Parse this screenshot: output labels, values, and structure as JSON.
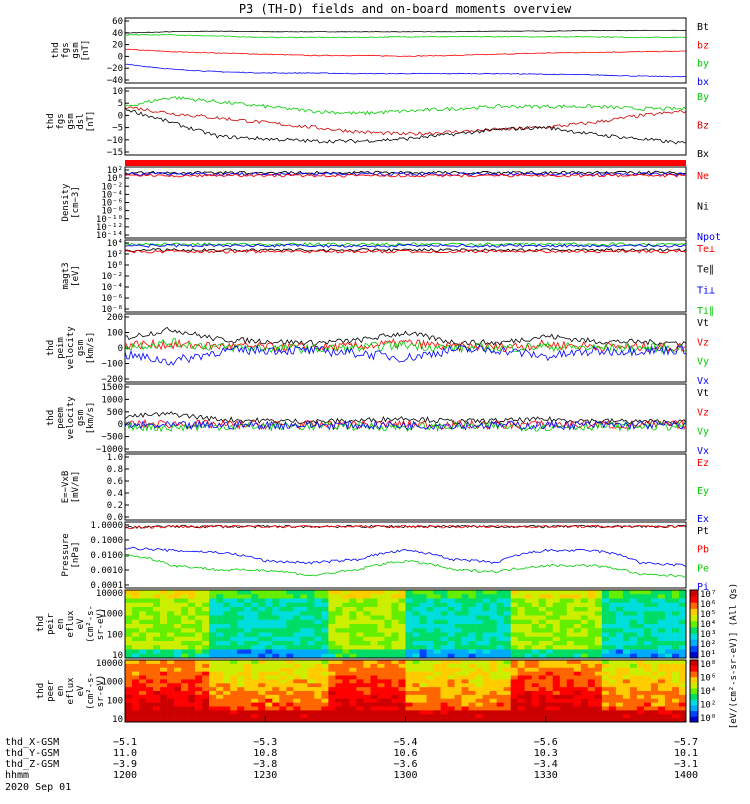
{
  "title": "P3 (TH-D) fields and on-board moments overview",
  "panels": [
    {
      "id": "fgs-gsm",
      "ylabel": [
        "thd",
        "fgs",
        "gsm",
        "[nT]"
      ],
      "yticks": [
        "60",
        "40",
        "20",
        "0",
        "−20",
        "−40"
      ],
      "yrange": [
        -42,
        62
      ],
      "legend": [
        {
          "label": "Bt",
          "color": "#000000"
        },
        {
          "label": "bz",
          "color": "#ff0000"
        },
        {
          "label": "by",
          "color": "#00cc00"
        },
        {
          "label": "bx",
          "color": "#0000ff"
        }
      ]
    },
    {
      "id": "fgs-dsl",
      "ylabel": [
        "thd",
        "fgs",
        "gsm",
        "dsl",
        "[nT]"
      ],
      "yticks": [
        "10",
        "5",
        "0",
        "−5",
        "−10",
        "−15"
      ],
      "yrange": [
        -18,
        11
      ],
      "legend": [
        {
          "label": "By",
          "color": "#00cc00"
        },
        {
          "label": "Bz",
          "color": "#cc0000"
        },
        {
          "label": "Bx",
          "color": "#000000"
        }
      ]
    },
    {
      "id": "density",
      "ylabel": [
        "Density",
        "[cm−3]"
      ],
      "yticks": [
        "10²",
        "10⁰",
        "10⁻²",
        "10⁻⁴",
        "10⁻⁶",
        "10⁻⁸",
        "10⁻¹⁰",
        "10⁻¹²",
        "10⁻¹⁴"
      ],
      "legend": [
        {
          "label": "Ne",
          "color": "#ff0000"
        },
        {
          "label": "Ni",
          "color": "#000000"
        },
        {
          "label": "Npot",
          "color": "#0000ff"
        }
      ]
    },
    {
      "id": "temperature",
      "ylabel": [
        "magt3",
        "[eV]"
      ],
      "yticks": [
        "10⁴",
        "10²",
        "10⁰",
        "10⁻²",
        "10⁻⁴",
        "10⁻⁶",
        "10⁻⁸"
      ],
      "legend": [
        {
          "label": "Te⊥",
          "color": "#ff0000"
        },
        {
          "label": "Te∥",
          "color": "#000000"
        },
        {
          "label": "Ti⊥",
          "color": "#0000ff"
        },
        {
          "label": "Ti∥",
          "color": "#00cc00"
        }
      ]
    },
    {
      "id": "peim-velocity",
      "ylabel": [
        "thd",
        "peim",
        "velocity",
        "gsm",
        "[km/s]"
      ],
      "yticks": [
        "200",
        "100",
        "0",
        "−100",
        "−200"
      ],
      "yrange": [
        -200,
        200
      ],
      "legend": [
        {
          "label": "Vt",
          "color": "#000000"
        },
        {
          "label": "Vz",
          "color": "#ff0000"
        },
        {
          "label": "Vy",
          "color": "#00cc00"
        },
        {
          "label": "Vx",
          "color": "#0000ff"
        }
      ]
    },
    {
      "id": "peem-velocity",
      "ylabel": [
        "thd",
        "peem",
        "velocity",
        "gsm",
        "[km/s]"
      ],
      "yticks": [
        "1500",
        "1000",
        "500",
        "0",
        "−500",
        "−1000"
      ],
      "yrange": [
        -1000,
        1500
      ],
      "legend": [
        {
          "label": "Vt",
          "color": "#000000"
        },
        {
          "label": "Vz",
          "color": "#ff0000"
        },
        {
          "label": "Vy",
          "color": "#00cc00"
        },
        {
          "label": "Vx",
          "color": "#0000ff"
        }
      ]
    },
    {
      "id": "efield",
      "ylabel": [
        "E=−VxB",
        "[mV/m]"
      ],
      "yticks": [
        "1.0",
        "0.8",
        "0.6",
        "0.4",
        "0.2",
        "0.0"
      ],
      "yrange": [
        0,
        1
      ],
      "legend": [
        {
          "label": "Ez",
          "color": "#ff0000"
        },
        {
          "label": "Ey",
          "color": "#00cc00"
        },
        {
          "label": "Ex",
          "color": "#0000ff"
        }
      ]
    },
    {
      "id": "pressure",
      "ylabel": [
        "Pressure",
        "[nPa]"
      ],
      "yticks": [
        "1.0000",
        "0.1000",
        "0.0100",
        "0.0010",
        "0.0001"
      ],
      "legend": [
        {
          "label": "Pt",
          "color": "#000000"
        },
        {
          "label": "Pb",
          "color": "#ff0000"
        },
        {
          "label": "Pe",
          "color": "#00cc00"
        },
        {
          "label": "Pi",
          "color": "#0000ff"
        }
      ]
    },
    {
      "id": "peir-spec",
      "ylabel": [
        "thd",
        "peir",
        "en",
        "eflux",
        "eV",
        "(cm²-s-",
        "sr-eV)"
      ],
      "yticks": [
        "10000",
        "1000",
        "100",
        "10"
      ]
    },
    {
      "id": "peer-spec",
      "ylabel": [
        "thd",
        "peer",
        "en",
        "eflux",
        "eV",
        "(cm²-s-",
        "sr-eV)"
      ],
      "yticks": [
        "10000",
        "1000",
        "100",
        "10"
      ]
    }
  ],
  "colorbar": {
    "label": "[eV/(cm²-s-sr-eV)] (All Qs)",
    "top_ticks": [
      "10⁷",
      "10⁶",
      "10⁵",
      "10⁴",
      "10³",
      "10²",
      "10¹"
    ],
    "bottom_ticks": [
      "10⁸",
      "10⁶",
      "10⁴",
      "10²",
      "10⁰"
    ]
  },
  "xaxis": {
    "rows": [
      {
        "label": "thd_X-GSM",
        "values": [
          "−5.1",
          "−5.3",
          "−5.4",
          "−5.6",
          "−5.7"
        ]
      },
      {
        "label": "thd_Y-GSM",
        "values": [
          "11.0",
          "10.8",
          "10.6",
          "10.3",
          "10.1"
        ]
      },
      {
        "label": "thd_Z-GSM",
        "values": [
          "−3.9",
          "−3.8",
          "−3.6",
          "−3.4",
          "−3.1"
        ]
      },
      {
        "label": "hhmm",
        "values": [
          "1200",
          "1230",
          "1300",
          "1330",
          "1400"
        ]
      }
    ],
    "date": "2020 Sep 01"
  },
  "chart_data": {
    "type": "line",
    "title": "P3 (TH-D) fields and on-board moments overview",
    "x_label": "hhmm",
    "x_range": [
      "1200",
      "1400"
    ],
    "x": [
      1200,
      1210,
      1220,
      1230,
      1240,
      1250,
      1300,
      1310,
      1320,
      1330,
      1340,
      1350,
      1400
    ],
    "panels": [
      {
        "id": "fgs-gsm",
        "series": [
          {
            "name": "Bt",
            "values": [
              38,
              40,
              41,
              40,
              40,
              40,
              40,
              40,
              41,
              41,
              42,
              42,
              42
            ]
          },
          {
            "name": "bz",
            "values": [
              12,
              8,
              6,
              4,
              2,
              2,
              1,
              2,
              4,
              6,
              7,
              8,
              9
            ]
          },
          {
            "name": "by",
            "values": [
              35,
              35,
              33,
              31,
              31,
              31,
              32,
              32,
              32,
              32,
              32,
              31,
              31
            ]
          },
          {
            "name": "bx",
            "values": [
              -12,
              -20,
              -24,
              -26,
              -26,
              -27,
              -27,
              -27,
              -27,
              -28,
              -29,
              -31,
              -32
            ]
          }
        ]
      },
      {
        "id": "fgs-dsl",
        "series": [
          {
            "name": "By",
            "values": [
              3,
              7,
              5,
              3,
              1,
              0,
              1,
              2,
              3,
              3,
              3,
              2,
              2
            ]
          },
          {
            "name": "Bz",
            "values": [
              3,
              0,
              -2,
              -4,
              -6,
              -8,
              -9,
              -8,
              -7,
              -6,
              -4,
              -1,
              1
            ]
          },
          {
            "name": "Bx",
            "values": [
              2,
              -4,
              -10,
              -11,
              -12,
              -12,
              -11,
              -9,
              -7,
              -6,
              -9,
              -11,
              -13
            ]
          }
        ]
      },
      {
        "id": "peim-velocity",
        "series": [
          {
            "name": "Vt",
            "values": [
              60,
              110,
              50,
              40,
              30,
              45,
              90,
              35,
              30,
              70,
              40,
              35,
              30
            ]
          },
          {
            "name": "Vz",
            "values": [
              20,
              20,
              10,
              5,
              0,
              10,
              30,
              5,
              5,
              20,
              10,
              5,
              5
            ]
          },
          {
            "name": "Vy",
            "values": [
              10,
              30,
              5,
              0,
              -5,
              0,
              20,
              0,
              0,
              10,
              0,
              0,
              0
            ]
          },
          {
            "name": "Vx",
            "values": [
              -40,
              -80,
              -20,
              -10,
              -15,
              -30,
              -60,
              -10,
              -10,
              -50,
              -20,
              -15,
              -10
            ]
          }
        ]
      },
      {
        "id": "peem-velocity",
        "series": [
          {
            "name": "Vt",
            "values": [
              300,
              400,
              200,
              150,
              120,
              150,
              250,
              120,
              150,
              200,
              150,
              120,
              100
            ]
          },
          {
            "name": "Vz",
            "values": [
              20,
              30,
              10,
              0,
              0,
              10,
              20,
              0,
              0,
              10,
              0,
              0,
              0
            ]
          },
          {
            "name": "Vy",
            "values": [
              -50,
              -100,
              -50,
              -50,
              -50,
              -50,
              -80,
              -50,
              -50,
              -80,
              -50,
              -50,
              -50
            ]
          },
          {
            "name": "Vx",
            "values": [
              -20,
              -40,
              -20,
              -10,
              -10,
              -10,
              -20,
              -10,
              -10,
              -20,
              -10,
              -10,
              -10
            ]
          }
        ]
      },
      {
        "id": "pressure",
        "series": [
          {
            "name": "Pt",
            "values": [
              0.7,
              0.8,
              0.8,
              0.8,
              0.8,
              0.8,
              0.8,
              0.8,
              0.8,
              0.8,
              0.8,
              0.8,
              0.8
            ]
          },
          {
            "name": "Pb",
            "values": [
              0.7,
              0.8,
              0.8,
              0.8,
              0.8,
              0.8,
              0.8,
              0.8,
              0.8,
              0.8,
              0.8,
              0.8,
              0.8
            ]
          },
          {
            "name": "Pe",
            "values": [
              0.01,
              0.002,
              0.001,
              0.001,
              0.0004,
              0.001,
              0.004,
              0.001,
              0.0008,
              0.002,
              0.002,
              0.0005,
              0.0004
            ]
          },
          {
            "name": "Pi",
            "values": [
              0.03,
              0.02,
              0.015,
              0.004,
              0.003,
              0.005,
              0.02,
              0.005,
              0.003,
              0.02,
              0.02,
              0.003,
              0.002
            ]
          }
        ]
      }
    ]
  }
}
